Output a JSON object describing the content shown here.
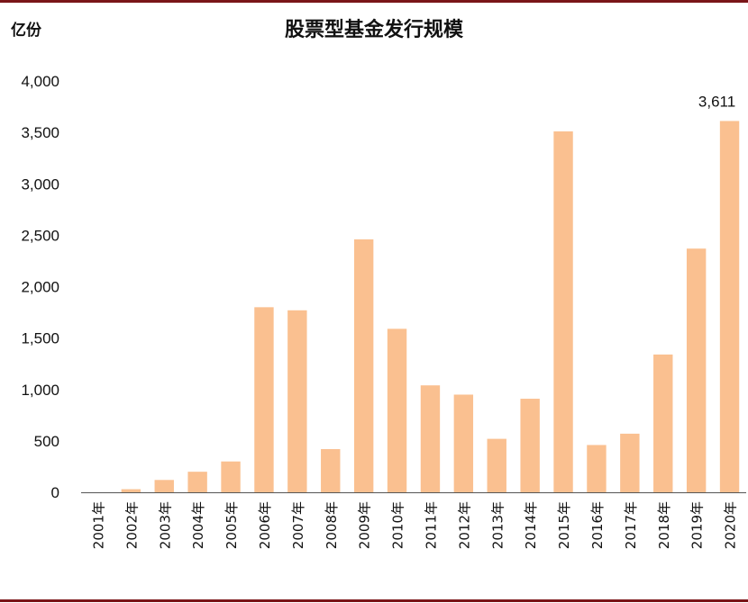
{
  "unit_label": "亿份",
  "chart_data": {
    "type": "bar",
    "title": "股票型基金发行规模",
    "xlabel": "",
    "ylabel": "亿份",
    "ylim": [
      0,
      4000
    ],
    "yticks": [
      "0",
      "500",
      "1,000",
      "1,500",
      "2,000",
      "2,500",
      "3,000",
      "3,500",
      "4,000"
    ],
    "grid": false,
    "bar_color": "#fac090",
    "categories": [
      "2001年",
      "2002年",
      "2003年",
      "2004年",
      "2005年",
      "2006年",
      "2007年",
      "2008年",
      "2009年",
      "2010年",
      "2011年",
      "2012年",
      "2013年",
      "2014年",
      "2015年",
      "2016年",
      "2017年",
      "2018年",
      "2019年",
      "2020年"
    ],
    "values": [
      0,
      30,
      120,
      200,
      300,
      1800,
      1770,
      420,
      2460,
      1590,
      1040,
      950,
      520,
      910,
      3510,
      460,
      570,
      1340,
      2370,
      3611
    ],
    "data_labels": [
      {
        "category": "2020年",
        "text": "3,611"
      }
    ]
  }
}
